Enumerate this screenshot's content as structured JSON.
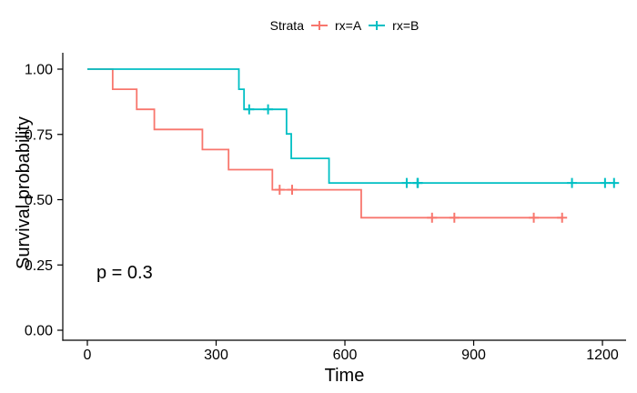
{
  "figure": {
    "background": "#FFFFFF"
  },
  "legend": {
    "title": "Strata",
    "items": [
      {
        "label": "rx=A",
        "color": "#F8766D"
      },
      {
        "label": "rx=B",
        "color": "#00BFC4"
      }
    ]
  },
  "annotations": {
    "pvalue": "p = 0.3"
  },
  "chart_data": {
    "type": "line",
    "subtype": "kaplan-meier-step-curve",
    "title": "",
    "xlabel": "Time",
    "ylabel": "Survival probability",
    "xlim": [
      0,
      1227
    ],
    "ylim": [
      0,
      1
    ],
    "grid": false,
    "legend_position": "top-center",
    "axis_color": "#000000",
    "tick_label_color": "#000000",
    "xticks": {
      "values": [
        0,
        300,
        600,
        900,
        1200
      ],
      "labels": [
        "0",
        "300",
        "600",
        "900",
        "1200"
      ]
    },
    "yticks": {
      "values": [
        0,
        0.25,
        0.5,
        0.75,
        1
      ],
      "labels": [
        "0.00",
        "0.25",
        "0.50",
        "0.75",
        "1.00"
      ]
    },
    "series": [
      {
        "name": "rx=A",
        "color": "#F8766D",
        "steps": [
          [
            0,
            1.0
          ],
          [
            59,
            0.923
          ],
          [
            115,
            0.846
          ],
          [
            156,
            0.769
          ],
          [
            268,
            0.692
          ],
          [
            329,
            0.615
          ],
          [
            431,
            0.538
          ],
          [
            638,
            0.431
          ]
        ],
        "end_time": 1106,
        "censor_times": [
          448,
          477,
          803,
          855,
          1040,
          1106
        ]
      },
      {
        "name": "rx=B",
        "color": "#00BFC4",
        "steps": [
          [
            0,
            1.0
          ],
          [
            353,
            0.923
          ],
          [
            365,
            0.846
          ],
          [
            464,
            0.752
          ],
          [
            475,
            0.658
          ],
          [
            563,
            0.564
          ]
        ],
        "end_time": 1227,
        "censor_times": [
          377,
          421,
          744,
          769,
          770,
          1129,
          1206,
          1227
        ]
      }
    ]
  }
}
